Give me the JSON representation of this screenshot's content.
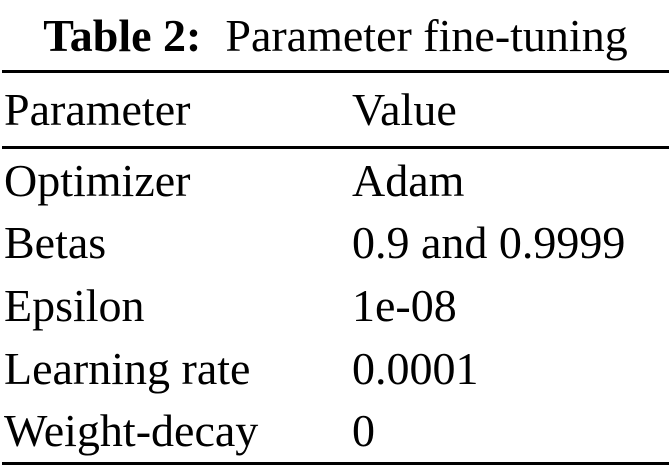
{
  "caption": {
    "label": "Table 2:",
    "title": "Parameter fine-tuning"
  },
  "table": {
    "headers": [
      "Parameter",
      "Value"
    ],
    "rows": [
      {
        "parameter": "Optimizer",
        "value": "Adam"
      },
      {
        "parameter": "Betas",
        "value": "0.9 and 0.9999"
      },
      {
        "parameter": "Epsilon",
        "value": "1e-08"
      },
      {
        "parameter": "Learning rate",
        "value": "0.0001"
      },
      {
        "parameter": "Weight-decay",
        "value": "0"
      }
    ]
  },
  "colors": {
    "text": "#000000",
    "background": "#ffffff",
    "rule": "#000000"
  }
}
